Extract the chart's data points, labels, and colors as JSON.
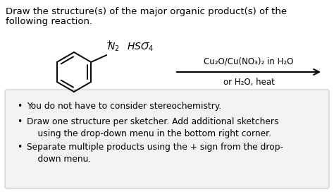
{
  "bg_color": "#ffffff",
  "title_line1": "Draw the structure(s) of the major organic product(s) of the",
  "title_line2": "following reaction.",
  "title_fontsize": 9.5,
  "reagent_above": "Cu₂O/Cu(NO₃)₂ in H₂O",
  "reagent_below": "or H₂O, heat",
  "bullet_points": [
    "You do not have to consider stereochemistry.",
    "Draw one structure per sketcher. Add additional sketchers\n    using the drop-down menu in the bottom right corner.",
    "Separate multiple products using the + sign from the drop-\n    down menu."
  ],
  "box_color": "#f2f2f2",
  "box_edge_color": "#d0d0d0",
  "text_fontsize": 8.8
}
